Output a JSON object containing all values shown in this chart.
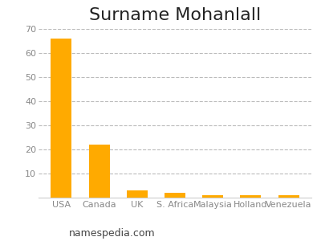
{
  "title": "Surname Mohanlall",
  "categories": [
    "USA",
    "Canada",
    "UK",
    "S. Africa",
    "Malaysia",
    "Holland",
    "Venezuela"
  ],
  "values": [
    66,
    22,
    3,
    2,
    1,
    1,
    1
  ],
  "bar_color": "#FFAA00",
  "ylim": [
    0,
    70
  ],
  "yticks": [
    10,
    20,
    30,
    40,
    50,
    60,
    70
  ],
  "ytick_labels": [
    "10",
    "20",
    "30",
    "40",
    "50",
    "60",
    "70"
  ],
  "grid_color": "#bbbbbb",
  "background_color": "#ffffff",
  "footer_text": "namespedia.com",
  "title_fontsize": 16,
  "tick_fontsize": 8,
  "footer_fontsize": 9
}
